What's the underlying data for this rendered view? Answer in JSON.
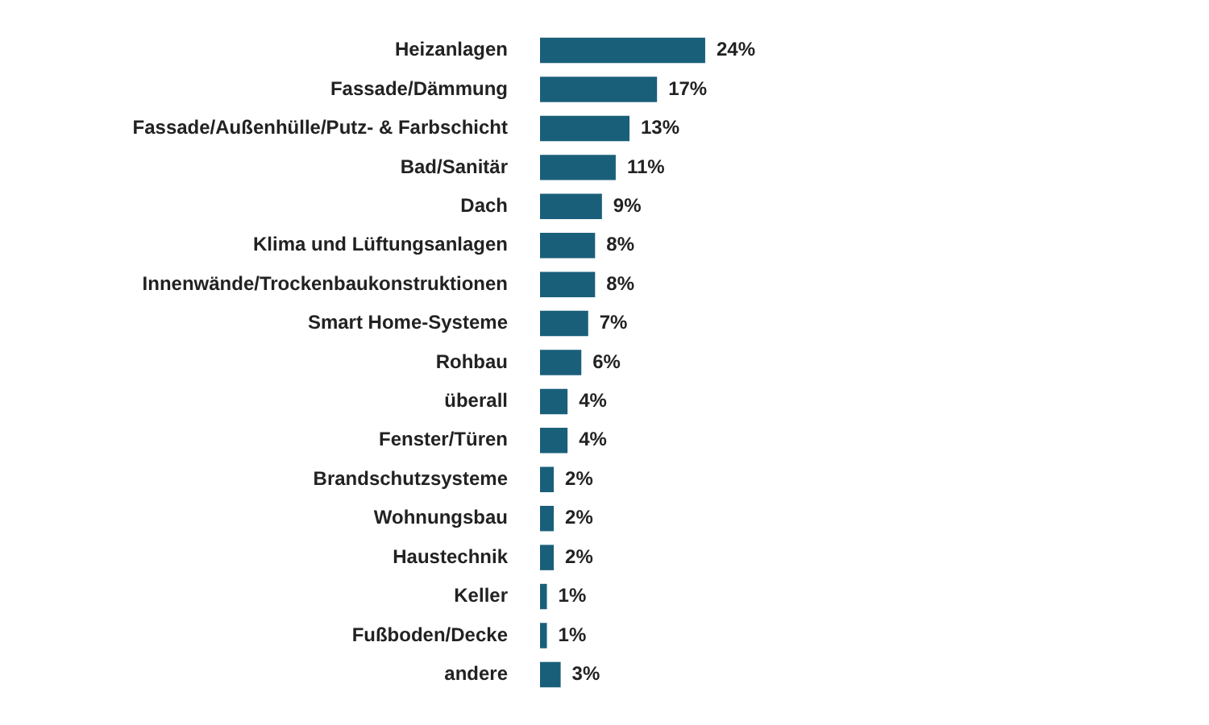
{
  "chart_data": {
    "type": "bar",
    "orientation": "horizontal",
    "categories": [
      "Heizanlagen",
      "Fassade/Dämmung",
      "Fassade/Außenhülle/Putz- & Farbschicht",
      "Bad/Sanitär",
      "Dach",
      "Klima und Lüftungsanlagen",
      "Innenwände/Trockenbaukonstruktionen",
      "Smart Home-Systeme",
      "Rohbau",
      "überall",
      "Fenster/Türen",
      "Brandschutzsysteme",
      "Wohnungsbau",
      "Haustechnik",
      "Keller",
      "Fußboden/Decke",
      "andere"
    ],
    "values": [
      24,
      17,
      13,
      11,
      9,
      8,
      8,
      7,
      6,
      4,
      4,
      2,
      2,
      2,
      1,
      1,
      3
    ],
    "value_labels": [
      "24%",
      "17%",
      "13%",
      "11%",
      "9%",
      "8%",
      "8%",
      "7%",
      "6%",
      "4%",
      "4%",
      "2%",
      "2%",
      "2%",
      "1%",
      "1%",
      "3%"
    ],
    "color": "#1a5f7a",
    "legend": false
  }
}
